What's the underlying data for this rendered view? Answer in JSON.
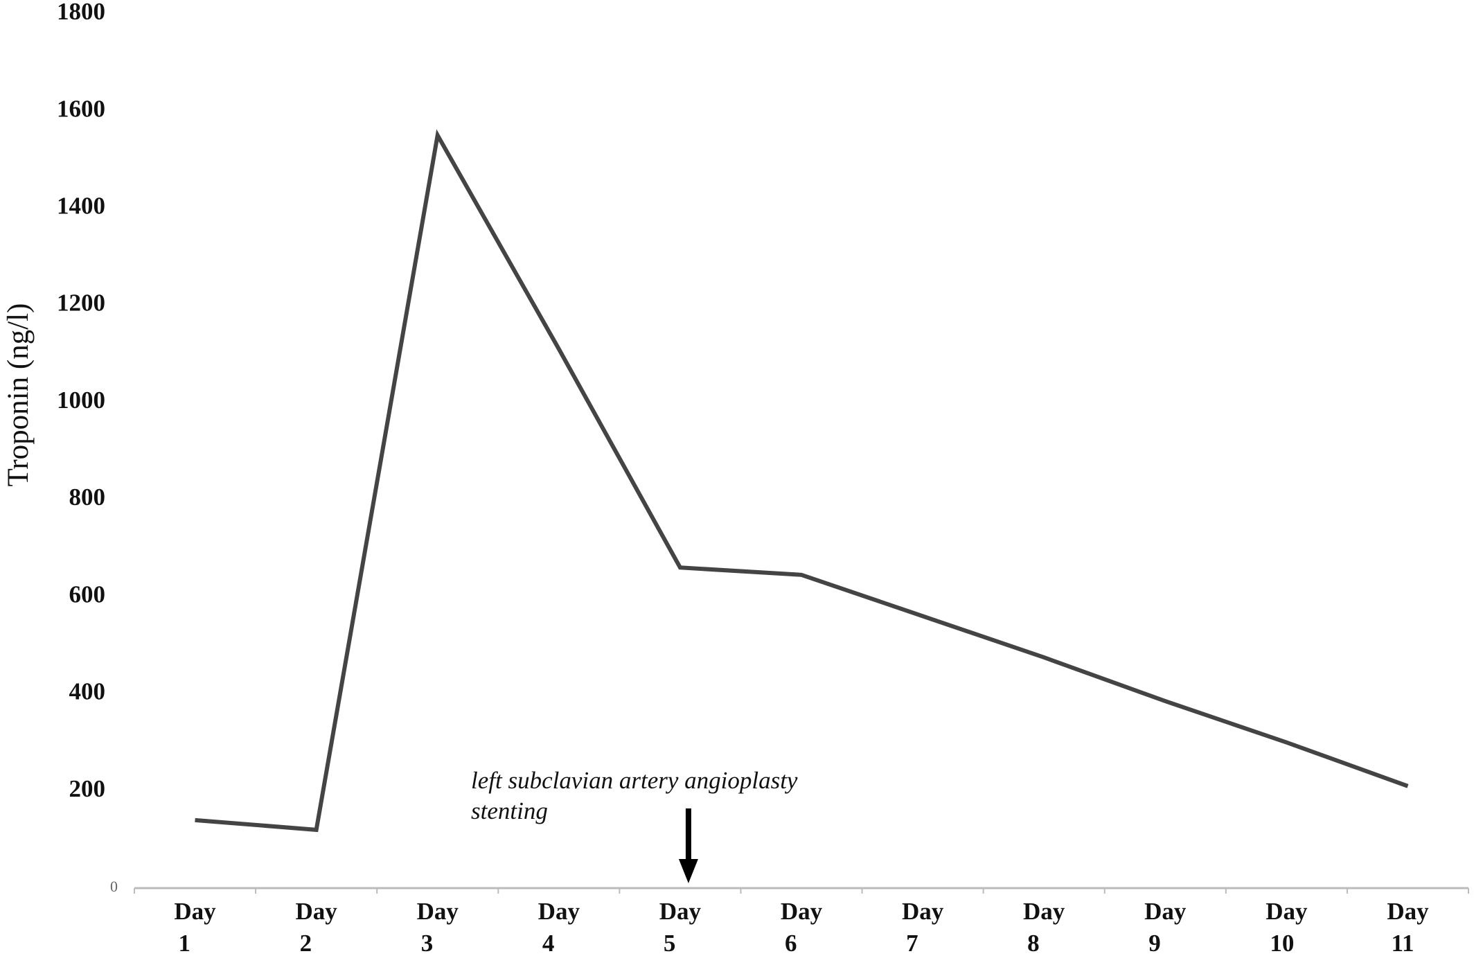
{
  "chart_data": {
    "type": "line",
    "y_label": "Troponin (ng/l)",
    "categories": [
      "Day 1",
      "Day 2",
      "Day 3",
      "Day 4",
      "Day 5",
      "Day 6",
      "Day 7",
      "Day 8",
      "Day 9",
      "Day 10",
      "Day 11"
    ],
    "series": [
      {
        "name": "Troponin",
        "color": "#444444",
        "values": [
          140,
          120,
          1550,
          1110,
          660,
          645,
          560,
          475,
          385,
          300,
          210
        ]
      }
    ],
    "ylim": [
      0,
      1800
    ],
    "yticks": [
      0,
      200,
      400,
      600,
      800,
      1000,
      1200,
      1400,
      1600,
      1800
    ],
    "grid": false,
    "annotation": {
      "text": "left subclavian artery angioplasty stenting",
      "category": 4
    }
  }
}
